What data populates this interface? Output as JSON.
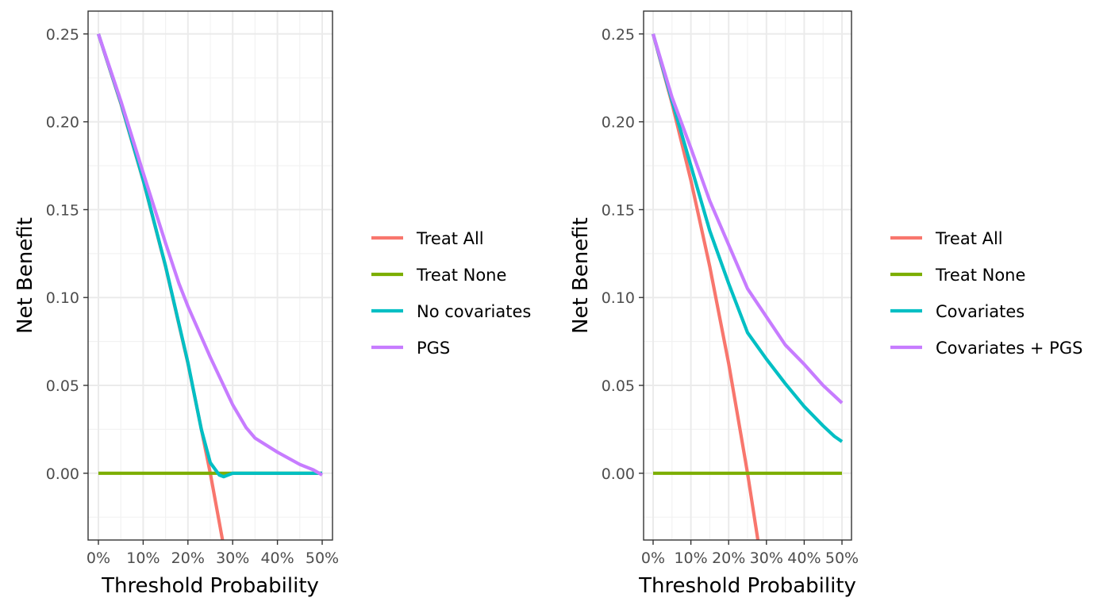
{
  "chart_data": [
    {
      "type": "line",
      "xlabel": "Threshold Probability",
      "ylabel": "Net Benefit",
      "xlim": [
        0,
        0.5
      ],
      "ylim": [
        -0.038,
        0.263
      ],
      "x_ticks": [
        0,
        0.1,
        0.2,
        0.3,
        0.4,
        0.5
      ],
      "x_tick_labels": [
        "0%",
        "10%",
        "20%",
        "30%",
        "40%",
        "50%"
      ],
      "y_ticks": [
        0,
        0.05,
        0.1,
        0.15,
        0.2,
        0.25
      ],
      "y_tick_labels": [
        "0.00",
        "0.05",
        "0.10",
        "0.15",
        "0.20",
        "0.25"
      ],
      "grid": true,
      "legend_position": "right",
      "series": [
        {
          "name": "Treat All",
          "color": "#F8766D",
          "points": [
            [
              0,
              0.25
            ],
            [
              0.05,
              0.2105
            ],
            [
              0.1,
              0.1667
            ],
            [
              0.15,
              0.1176
            ],
            [
              0.2,
              0.0625
            ],
            [
              0.25,
              0.0
            ],
            [
              0.28,
              -0.0417
            ]
          ]
        },
        {
          "name": "Treat None",
          "color": "#7CAE00",
          "points": [
            [
              0,
              0
            ],
            [
              0.5,
              0
            ]
          ]
        },
        {
          "name": "No covariates",
          "color": "#00BFC4",
          "points": [
            [
              0,
              0.25
            ],
            [
              0.05,
              0.211
            ],
            [
              0.1,
              0.167
            ],
            [
              0.15,
              0.118
            ],
            [
              0.2,
              0.063
            ],
            [
              0.23,
              0.025
            ],
            [
              0.25,
              0.006
            ],
            [
              0.27,
              -0.001
            ],
            [
              0.28,
              -0.002
            ],
            [
              0.3,
              0.0
            ],
            [
              0.5,
              0.0
            ]
          ]
        },
        {
          "name": "PGS",
          "color": "#C77CFF",
          "points": [
            [
              0,
              0.25
            ],
            [
              0.05,
              0.212
            ],
            [
              0.1,
              0.171
            ],
            [
              0.15,
              0.131
            ],
            [
              0.18,
              0.108
            ],
            [
              0.2,
              0.095
            ],
            [
              0.25,
              0.066
            ],
            [
              0.3,
              0.039
            ],
            [
              0.33,
              0.026
            ],
            [
              0.35,
              0.02
            ],
            [
              0.4,
              0.012
            ],
            [
              0.45,
              0.005
            ],
            [
              0.48,
              0.002
            ],
            [
              0.5,
              -0.001
            ]
          ]
        }
      ]
    },
    {
      "type": "line",
      "xlabel": "Threshold Probability",
      "ylabel": "Net Benefit",
      "xlim": [
        0,
        0.5
      ],
      "ylim": [
        -0.038,
        0.263
      ],
      "x_ticks": [
        0,
        0.1,
        0.2,
        0.3,
        0.4,
        0.5
      ],
      "x_tick_labels": [
        "0%",
        "10%",
        "20%",
        "30%",
        "40%",
        "50%"
      ],
      "y_ticks": [
        0,
        0.05,
        0.1,
        0.15,
        0.2,
        0.25
      ],
      "y_tick_labels": [
        "0.00",
        "0.05",
        "0.10",
        "0.15",
        "0.20",
        "0.25"
      ],
      "grid": true,
      "legend_position": "right",
      "series": [
        {
          "name": "Treat All",
          "color": "#F8766D",
          "points": [
            [
              0,
              0.25
            ],
            [
              0.05,
              0.2105
            ],
            [
              0.1,
              0.1667
            ],
            [
              0.15,
              0.1176
            ],
            [
              0.2,
              0.0625
            ],
            [
              0.25,
              0.0
            ],
            [
              0.28,
              -0.0417
            ]
          ]
        },
        {
          "name": "Treat None",
          "color": "#7CAE00",
          "points": [
            [
              0,
              0
            ],
            [
              0.5,
              0
            ]
          ]
        },
        {
          "name": "Covariates",
          "color": "#00BFC4",
          "points": [
            [
              0,
              0.25
            ],
            [
              0.05,
              0.212
            ],
            [
              0.1,
              0.175
            ],
            [
              0.15,
              0.138
            ],
            [
              0.2,
              0.108
            ],
            [
              0.25,
              0.08
            ],
            [
              0.3,
              0.065
            ],
            [
              0.35,
              0.051
            ],
            [
              0.4,
              0.038
            ],
            [
              0.45,
              0.027
            ],
            [
              0.48,
              0.021
            ],
            [
              0.5,
              0.018
            ]
          ]
        },
        {
          "name": "Covariates + PGS",
          "color": "#C77CFF",
          "points": [
            [
              0,
              0.25
            ],
            [
              0.05,
              0.214
            ],
            [
              0.1,
              0.185
            ],
            [
              0.15,
              0.155
            ],
            [
              0.2,
              0.13
            ],
            [
              0.25,
              0.105
            ],
            [
              0.3,
              0.089
            ],
            [
              0.35,
              0.073
            ],
            [
              0.4,
              0.062
            ],
            [
              0.45,
              0.05
            ],
            [
              0.48,
              0.044
            ],
            [
              0.5,
              0.04
            ]
          ]
        }
      ]
    }
  ]
}
